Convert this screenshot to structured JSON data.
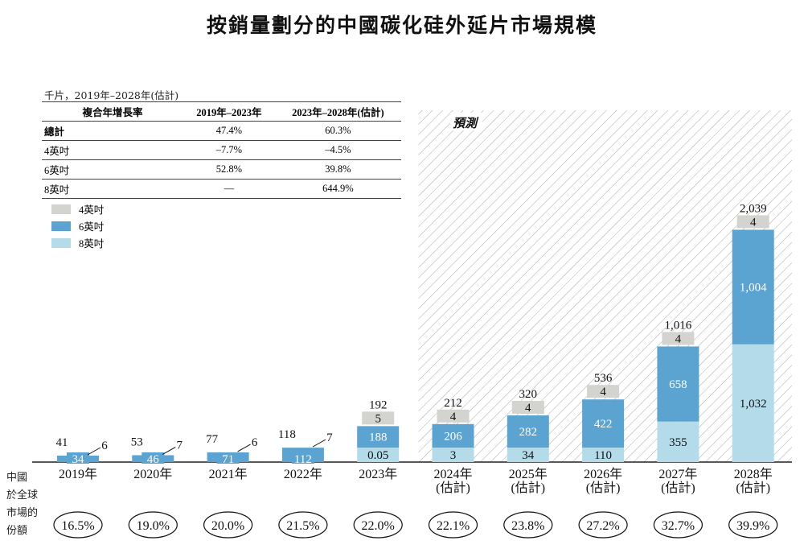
{
  "chart_data": {
    "type": "bar",
    "stacked": true,
    "title": "按銷量劃分的中國碳化硅外延片市場規模",
    "unit": "千片，2019年–2028年(估計)",
    "categories": [
      "2019年",
      "2020年",
      "2021年",
      "2022年",
      "2023年",
      "2024年\n(估計)",
      "2025年\n(估計)",
      "2026年\n(估計)",
      "2027年\n(估計)",
      "2028年\n(估計)"
    ],
    "series": [
      {
        "name": "8英吋",
        "color": "#b3dbea",
        "values": [
          null,
          null,
          null,
          null,
          0.05,
          3,
          34,
          110,
          355,
          1032
        ]
      },
      {
        "name": "6英吋",
        "color": "#5ba3d0",
        "values": [
          34,
          46,
          71,
          112,
          188,
          206,
          282,
          422,
          658,
          1004
        ]
      },
      {
        "name": "4英吋",
        "color": "#d3d3d0",
        "values": [
          6,
          7,
          6,
          7,
          5,
          4,
          4,
          4,
          4,
          4
        ]
      }
    ],
    "totals": [
      "41",
      "53",
      "77",
      "118",
      "192",
      "212",
      "320",
      "536",
      "1,016",
      "2,039"
    ],
    "value_labels": {
      "8英吋": [
        "",
        "",
        "",
        "",
        "0.05",
        "3",
        "34",
        "110",
        "355",
        "1,032"
      ],
      "6英吋": [
        "34",
        "46",
        "71",
        "112",
        "188",
        "206",
        "282",
        "422",
        "658",
        "1,004"
      ],
      "4英吋": [
        "6",
        "7",
        "6",
        "7",
        "5",
        "4",
        "4",
        "4",
        "4",
        "4"
      ]
    },
    "forecast_label": "預測",
    "forecast_from_index": 5,
    "share_label": [
      "中國",
      "於全球",
      "市場的",
      "份額"
    ],
    "share": [
      "16.5%",
      "19.0%",
      "20.0%",
      "21.5%",
      "22.0%",
      "22.1%",
      "23.8%",
      "27.2%",
      "32.7%",
      "39.9%"
    ],
    "legend_placement": "top-left"
  },
  "cagr_table": {
    "headers": [
      "複合年增長率",
      "2019年–2023年",
      "2023年–2028年(估計)"
    ],
    "rows": [
      [
        "總計",
        "47.4%",
        "60.3%"
      ],
      [
        "4英吋",
        "–7.7%",
        "–4.5%"
      ],
      [
        "6英吋",
        "52.8%",
        "39.8%"
      ],
      [
        "8英吋",
        "—",
        "644.9%"
      ]
    ]
  }
}
